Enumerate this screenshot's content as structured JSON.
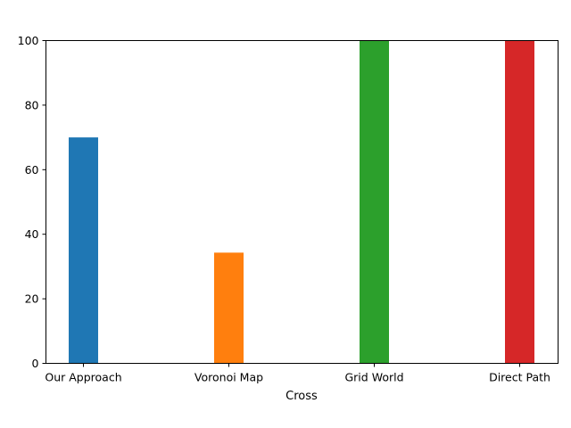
{
  "chart_data": {
    "type": "bar",
    "categories": [
      "Our Approach",
      "Voronoi Map",
      "Grid World",
      "Direct Path"
    ],
    "values": [
      70,
      34.3,
      100,
      100
    ],
    "colors": [
      "#1f77b4",
      "#ff7f0e",
      "#2ca02c",
      "#d62728"
    ],
    "title": "",
    "xlabel": "Cross",
    "ylabel": "",
    "ylim": [
      0,
      100
    ],
    "yticks": [
      0,
      20,
      40,
      60,
      80,
      100
    ],
    "grid": false,
    "legend": "none"
  }
}
